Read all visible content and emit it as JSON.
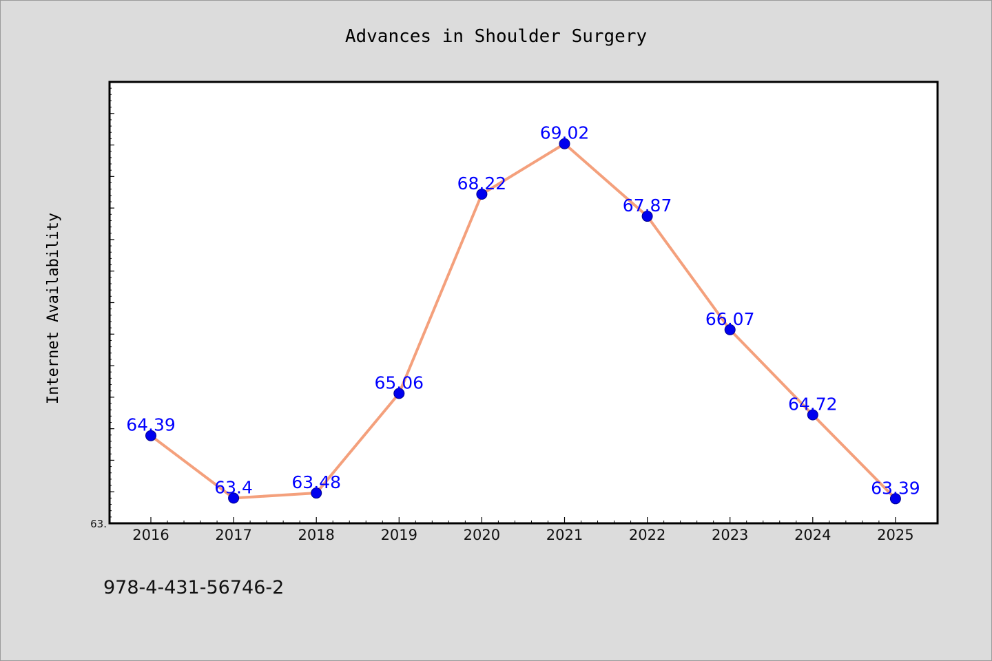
{
  "chart_data": {
    "type": "line",
    "title": "Advances in Shoulder Surgery",
    "xlabel": "",
    "ylabel": "Internet Availability",
    "categories": [
      "2016",
      "2017",
      "2018",
      "2019",
      "2020",
      "2021",
      "2022",
      "2023",
      "2024",
      "2025"
    ],
    "series": [
      {
        "values": [
          64.39,
          63.4,
          63.48,
          65.06,
          68.22,
          69.02,
          67.87,
          66.07,
          64.72,
          63.39
        ],
        "labels": [
          "64.39",
          "63.4",
          "63.48",
          "65.06",
          "68.22",
          "69.02",
          "67.87",
          "66.07",
          "64.72",
          "63.39"
        ],
        "line_color": "#f4a07c",
        "marker_color": "#0000ee",
        "label_color": "#0000ff"
      }
    ],
    "ylim": [
      63.0,
      70.0
    ],
    "ytick_labels": [
      "63."
    ],
    "grid": false,
    "legend": "none"
  },
  "footer": {
    "text": "978-4-431-56746-2"
  },
  "colors": {
    "background": "#dcdcdc",
    "plot_background": "#ffffff"
  }
}
